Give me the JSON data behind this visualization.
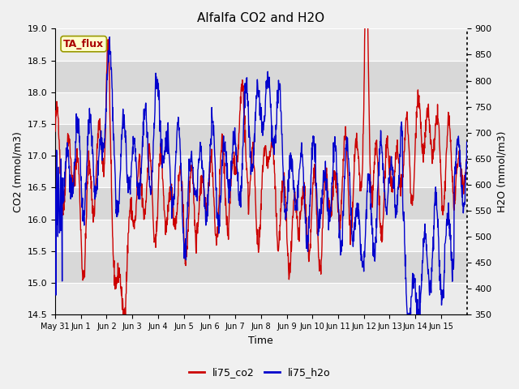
{
  "title": "Alfalfa CO2 and H2O",
  "xlabel": "Time",
  "ylabel_left": "CO2 (mmol/m3)",
  "ylabel_right": "H2O (mmol/m3)",
  "ylim_left": [
    14.5,
    19.0
  ],
  "ylim_right": [
    350,
    900
  ],
  "yticks_left": [
    14.5,
    15.0,
    15.5,
    16.0,
    16.5,
    17.0,
    17.5,
    18.0,
    18.5,
    19.0
  ],
  "yticks_right": [
    350,
    400,
    450,
    500,
    550,
    600,
    650,
    700,
    750,
    800,
    850,
    900
  ],
  "color_co2": "#cc0000",
  "color_h2o": "#0000cc",
  "linewidth": 1.0,
  "legend_label_co2": "li75_co2",
  "legend_label_h2o": "li75_h2o",
  "annotation_text": "TA_flux",
  "bg_color": "#f0f0f0",
  "plot_bg_light": "#ebebeb",
  "plot_bg_dark": "#d8d8d8",
  "grid_color": "#ffffff",
  "num_days": 16,
  "xtick_labels": [
    "May 31",
    "Jun 1",
    "Jun 2",
    "Jun 3",
    "Jun 4",
    "Jun 5",
    "Jun 6",
    "Jun 7",
    "Jun 8",
    "Jun 9",
    "Jun 10",
    "Jun 11",
    "Jun 12",
    "Jun 13",
    "Jun 14",
    "Jun 15"
  ]
}
